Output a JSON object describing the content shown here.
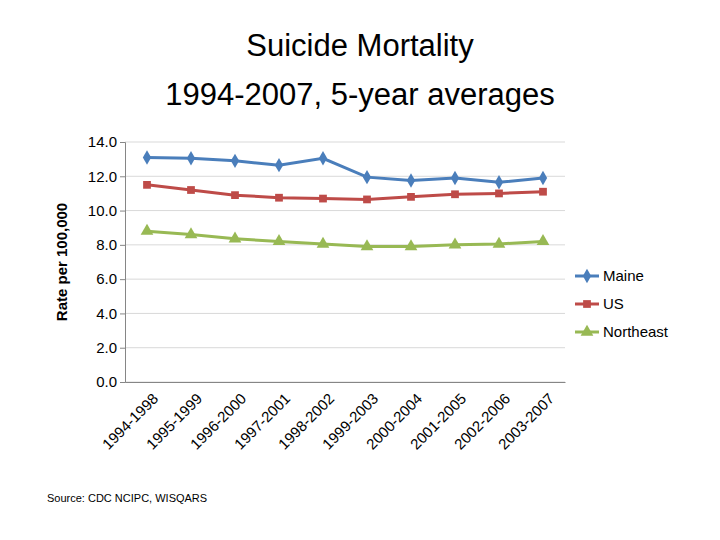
{
  "chart_data": {
    "type": "line",
    "title": "Suicide Mortality",
    "subtitle": "1994-2007, 5-year averages",
    "y_label": "Rate per 100,000",
    "annotations": [
      "Source: CDC NCIPC, WISQARS"
    ],
    "categories": [
      "1994-1998",
      "1995-1999",
      "1996-2000",
      "1997-2001",
      "1998-2002",
      "1999-2003",
      "2000-2004",
      "2001-2005",
      "2002-2006",
      "2003-2007"
    ],
    "series": [
      {
        "name": "Maine",
        "color": "#4a7ebb",
        "marker": "diamond",
        "values": [
          13.1,
          13.05,
          12.9,
          12.65,
          13.05,
          11.95,
          11.75,
          11.9,
          11.65,
          11.9
        ]
      },
      {
        "name": "US",
        "color": "#be4b48",
        "marker": "square",
        "values": [
          11.5,
          11.2,
          10.9,
          10.75,
          10.7,
          10.65,
          10.8,
          10.95,
          11.0,
          11.1
        ]
      },
      {
        "name": "Northeast",
        "color": "#98b954",
        "marker": "triangle",
        "values": [
          8.8,
          8.6,
          8.35,
          8.2,
          8.05,
          7.9,
          7.9,
          8.0,
          8.05,
          8.2
        ]
      }
    ],
    "ylim": [
      0,
      14
    ],
    "yticks": [
      {
        "value": 0,
        "label": "0.0"
      },
      {
        "value": 2,
        "label": "2.0"
      },
      {
        "value": 4,
        "label": "4.0"
      },
      {
        "value": 6,
        "label": "6.0"
      },
      {
        "value": 8,
        "label": "8.0"
      },
      {
        "value": 10,
        "label": "10.0"
      },
      {
        "value": 12,
        "label": "12.0"
      },
      {
        "value": 14,
        "label": "14.0"
      }
    ],
    "grid": true,
    "legend": "right"
  }
}
